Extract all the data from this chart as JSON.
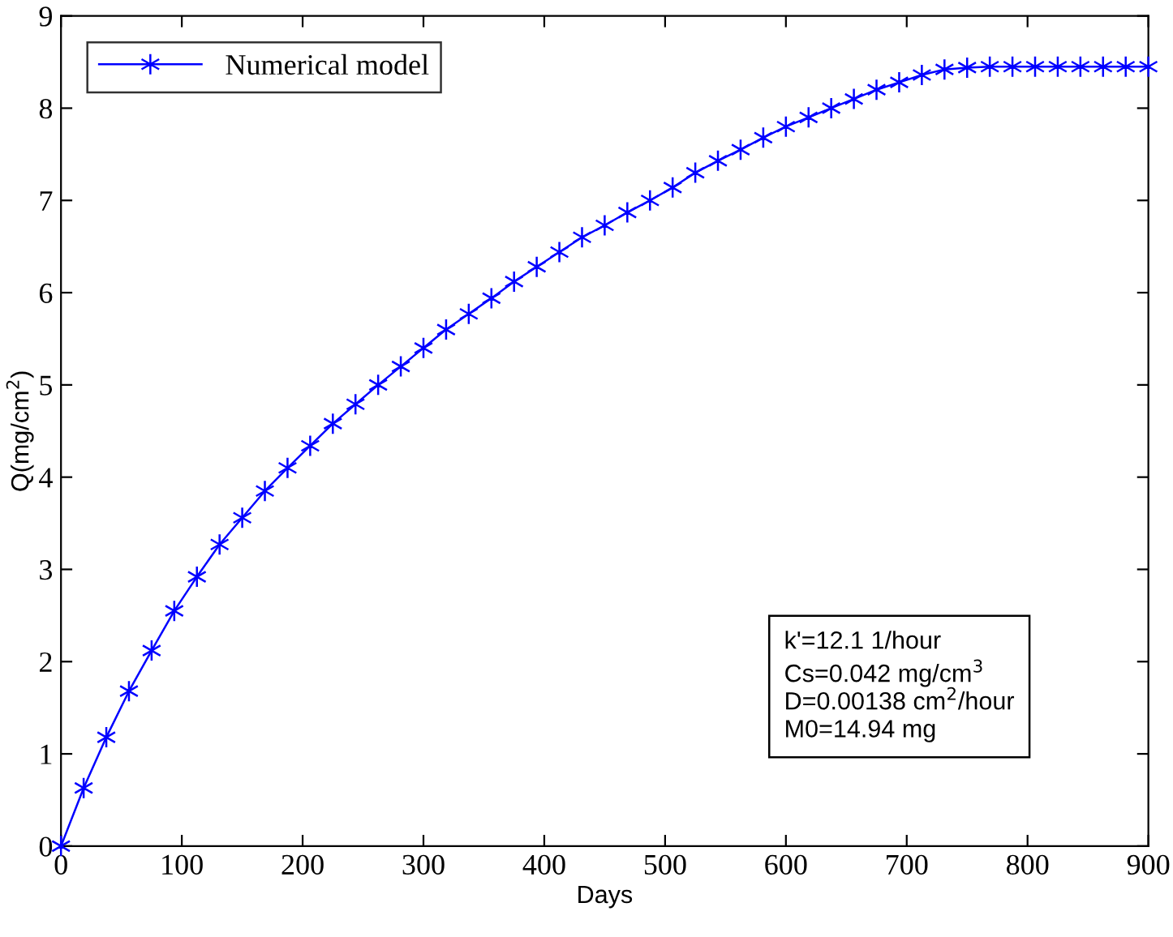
{
  "chart_data": {
    "type": "line",
    "xlabel": "Days",
    "ylabel": "Q(mg/cm$^{2}$)",
    "xlim": [
      0,
      900
    ],
    "xticks": [
      0,
      100,
      200,
      300,
      400,
      500,
      600,
      700,
      800,
      900
    ],
    "ylim": [
      0,
      9
    ],
    "yticks": [
      0,
      1,
      2,
      3,
      4,
      5,
      6,
      7,
      8,
      9
    ],
    "grid": false,
    "legend": "top left",
    "marker": "cross",
    "line_style": "solid",
    "annotations": [
      "k'=12.1 1/hour\nCs=0.042 mg/cm$^{3}$\nD=0.00138 cm$^{2}$/hour\nM0=14.94 mg"
    ],
    "series": [
      {
        "name": "Numerical model",
        "color": "#0000ff",
        "x": [
          0,
          18.75,
          37.5,
          56.25,
          75,
          93.75,
          112.5,
          131.25,
          150,
          168.75,
          187.5,
          206.25,
          225,
          243.75,
          262.5,
          281.25,
          300,
          318.75,
          337.5,
          356.25,
          375,
          393.75,
          412.5,
          431.25,
          450,
          468.75,
          487.5,
          506.25,
          525,
          543.75,
          562.5,
          581.25,
          600,
          618.75,
          637.5,
          656.25,
          675,
          693.75,
          712.5,
          731.25,
          750,
          768.75,
          787.5,
          806.25,
          825,
          843.75,
          862.5,
          881.25,
          900
        ],
        "values": [
          0,
          0.63,
          1.18,
          1.68,
          2.12,
          2.55,
          2.92,
          3.27,
          3.56,
          3.85,
          4.1,
          4.34,
          4.58,
          4.79,
          5.0,
          5.2,
          5.4,
          5.6,
          5.77,
          5.94,
          6.12,
          6.28,
          6.44,
          6.6,
          6.73,
          6.87,
          7.0,
          7.14,
          7.3,
          7.43,
          7.55,
          7.68,
          7.8,
          7.9,
          8.0,
          8.1,
          8.2,
          8.28,
          8.36,
          8.42,
          8.44,
          8.45,
          8.45,
          8.45,
          8.45,
          8.45,
          8.45,
          8.45,
          8.45
        ]
      }
    ]
  }
}
